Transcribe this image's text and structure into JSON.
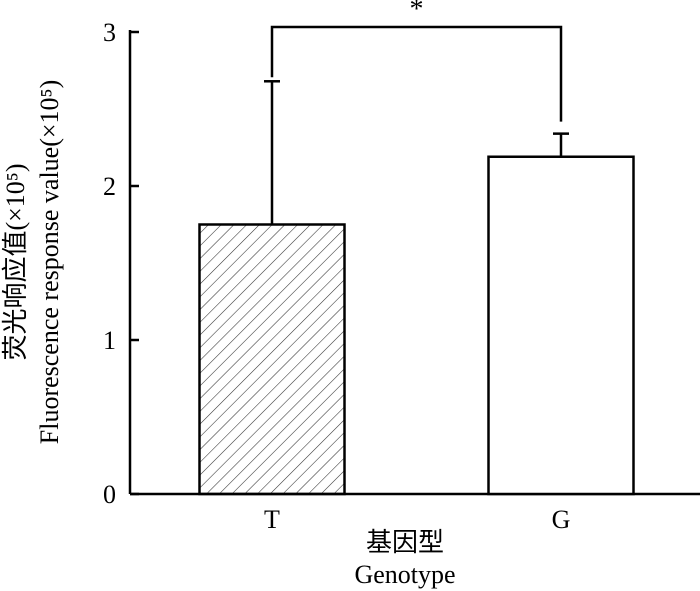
{
  "chart_data": {
    "type": "bar",
    "categories": [
      "T",
      "G"
    ],
    "values": [
      1.75,
      2.19
    ],
    "errors": [
      0.93,
      0.15
    ],
    "ylim": [
      0,
      3
    ],
    "yticks": [
      "0",
      "1",
      "2",
      "3"
    ],
    "grid": false,
    "xlabel_cn": "基因型",
    "xlabel_en": "Genotype",
    "ylabel_cn": "荧光响应值(×10⁵)",
    "ylabel_en": "Fluorescence response value(×10⁵)",
    "significance": "*",
    "bar_fills": [
      "hatched",
      "white"
    ]
  }
}
